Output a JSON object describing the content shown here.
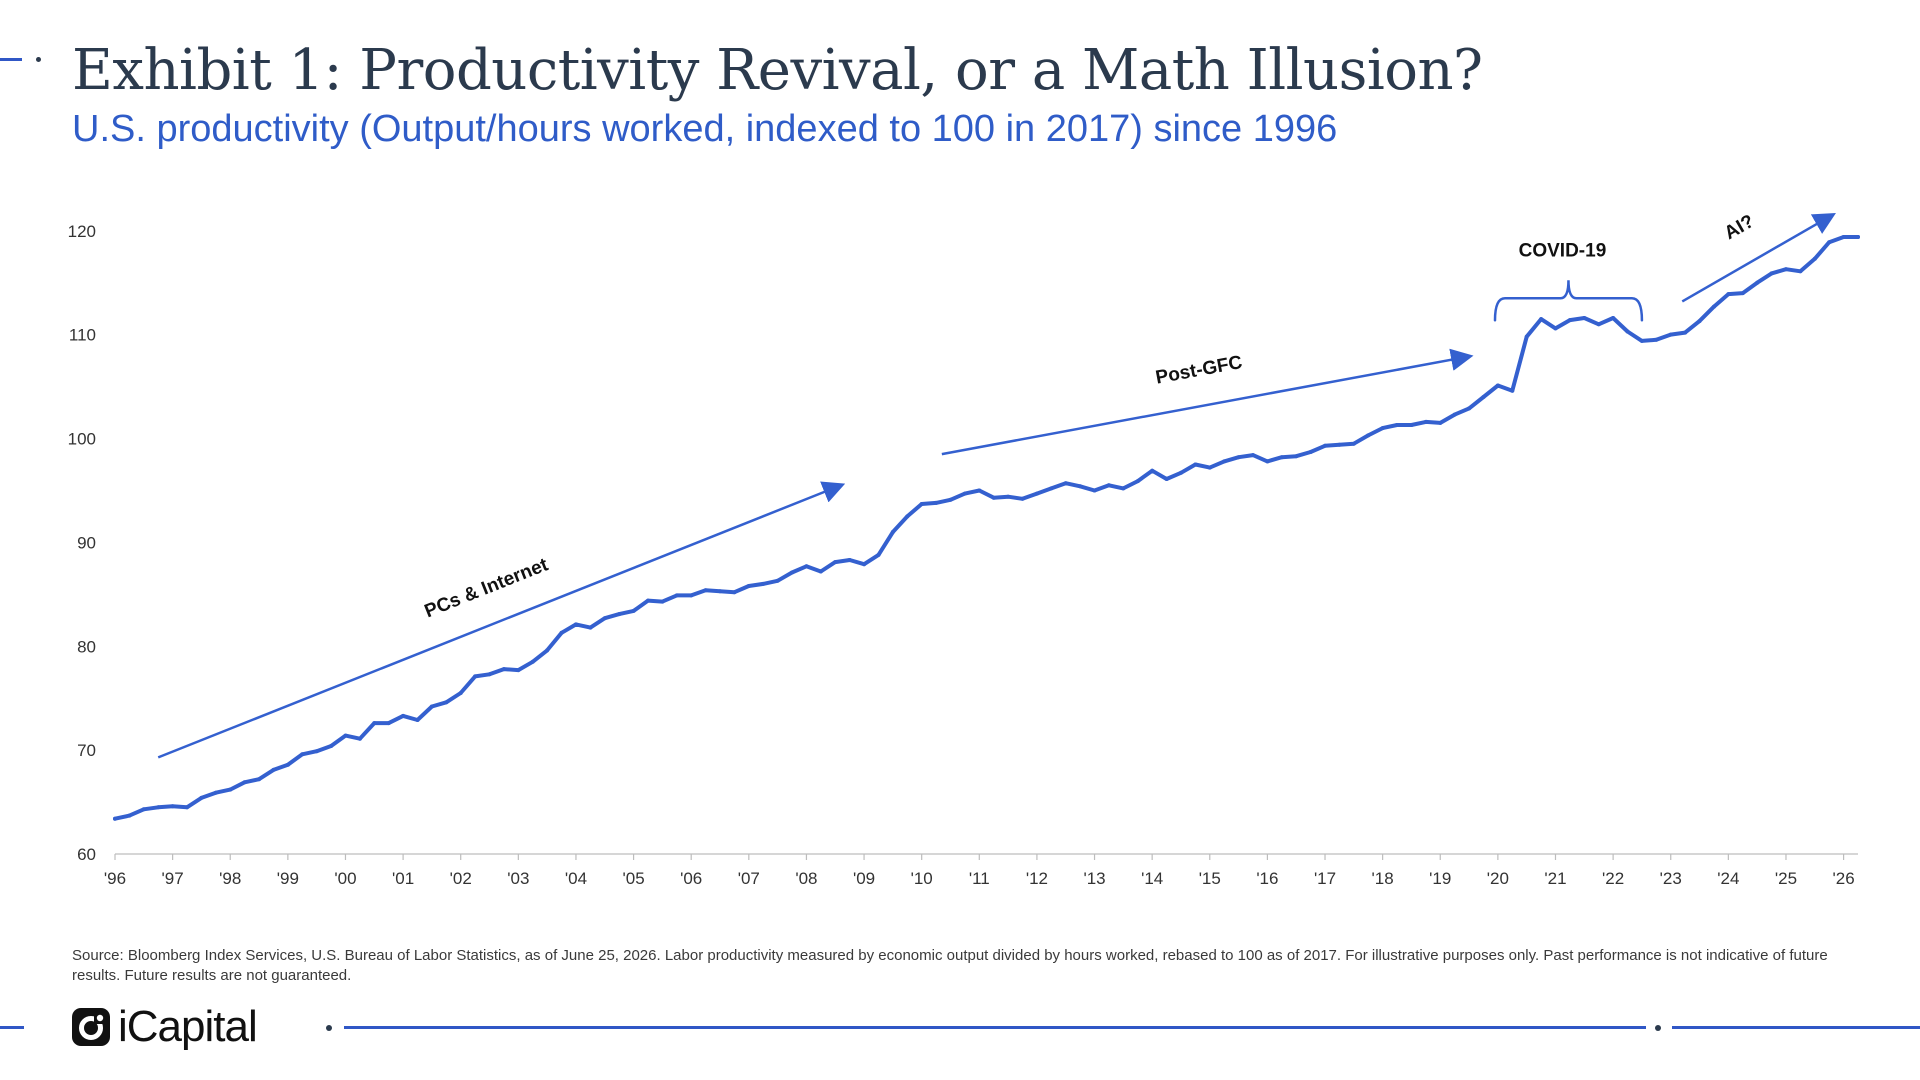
{
  "header": {
    "title": "Exhibit 1: Productivity Revival, or a Math Illusion?",
    "subtitle": "U.S. productivity (Output/hours worked, indexed to 100 in 2017) since 1996"
  },
  "colors": {
    "accent": "#3057c6",
    "line": "#3460cf",
    "title": "#2b3a4d",
    "subtitle": "#2f5cc8",
    "axis_text": "#333333"
  },
  "chart_data": {
    "type": "line",
    "title": "Exhibit 1: Productivity Revival, or a Math Illusion?",
    "subtitle": "U.S. productivity (Output/hours worked, indexed to 100 in 2017) since 1996",
    "xlabel": "",
    "ylabel": "",
    "ylim": [
      60,
      122
    ],
    "xlim": [
      1996.0,
      2026.25
    ],
    "yticks": [
      60,
      70,
      80,
      90,
      100,
      110,
      120
    ],
    "xticks": [
      {
        "x": 1996,
        "label": "'96"
      },
      {
        "x": 1997,
        "label": "'97"
      },
      {
        "x": 1998,
        "label": "'98"
      },
      {
        "x": 1999,
        "label": "'99"
      },
      {
        "x": 2000,
        "label": "'00"
      },
      {
        "x": 2001,
        "label": "'01"
      },
      {
        "x": 2002,
        "label": "'02"
      },
      {
        "x": 2003,
        "label": "'03"
      },
      {
        "x": 2004,
        "label": "'04"
      },
      {
        "x": 2005,
        "label": "'05"
      },
      {
        "x": 2006,
        "label": "'06"
      },
      {
        "x": 2007,
        "label": "'07"
      },
      {
        "x": 2008,
        "label": "'08"
      },
      {
        "x": 2009,
        "label": "'09"
      },
      {
        "x": 2010,
        "label": "'10"
      },
      {
        "x": 2011,
        "label": "'11"
      },
      {
        "x": 2012,
        "label": "'12"
      },
      {
        "x": 2013,
        "label": "'13"
      },
      {
        "x": 2014,
        "label": "'14"
      },
      {
        "x": 2015,
        "label": "'15"
      },
      {
        "x": 2016,
        "label": "'16"
      },
      {
        "x": 2017,
        "label": "'17"
      },
      {
        "x": 2018,
        "label": "'18"
      },
      {
        "x": 2019,
        "label": "'19"
      },
      {
        "x": 2020,
        "label": "'20"
      },
      {
        "x": 2021,
        "label": "'21"
      },
      {
        "x": 2022,
        "label": "'22"
      },
      {
        "x": 2023,
        "label": "'23"
      },
      {
        "x": 2024,
        "label": "'24"
      },
      {
        "x": 2025,
        "label": "'25"
      },
      {
        "x": 2026,
        "label": "'26"
      }
    ],
    "grid": false,
    "legend": "none",
    "series": [
      {
        "x": [
          1996.0,
          1996.25,
          1996.5,
          1996.75,
          1997.0,
          1997.25,
          1997.5,
          1997.75,
          1998.0,
          1998.25,
          1998.5,
          1998.75,
          1999.0,
          1999.25,
          1999.5,
          1999.75,
          2000.0,
          2000.25,
          2000.5,
          2000.75,
          2001.0,
          2001.25,
          2001.5,
          2001.75,
          2002.0,
          2002.25,
          2002.5,
          2002.75,
          2003.0,
          2003.25,
          2003.5,
          2003.75,
          2004.0,
          2004.25,
          2004.5,
          2004.75,
          2005.0,
          2005.25,
          2005.5,
          2005.75,
          2006.0,
          2006.25,
          2006.5,
          2006.75,
          2007.0,
          2007.25,
          2007.5,
          2007.75,
          2008.0,
          2008.25,
          2008.5,
          2008.75,
          2009.0,
          2009.25,
          2009.5,
          2009.75,
          2010.0,
          2010.25,
          2010.5,
          2010.75,
          2011.0,
          2011.25,
          2011.5,
          2011.75,
          2012.0,
          2012.25,
          2012.5,
          2012.75,
          2013.0,
          2013.25,
          2013.5,
          2013.75,
          2014.0,
          2014.25,
          2014.5,
          2014.75,
          2015.0,
          2015.25,
          2015.5,
          2015.75,
          2016.0,
          2016.25,
          2016.5,
          2016.75,
          2017.0,
          2017.25,
          2017.5,
          2017.75,
          2018.0,
          2018.25,
          2018.5,
          2018.75,
          2019.0,
          2019.25,
          2019.5,
          2019.75,
          2020.0,
          2020.25,
          2020.5,
          2020.75,
          2021.0,
          2021.25,
          2021.5,
          2021.75,
          2022.0,
          2022.25,
          2022.5,
          2022.75,
          2023.0,
          2023.25,
          2023.5,
          2023.75,
          2024.0,
          2024.25,
          2024.5,
          2024.75,
          2025.0,
          2025.25,
          2025.5,
          2025.75,
          2026.0,
          2026.25
        ],
        "values": [
          63.4,
          63.7,
          64.3,
          64.5,
          64.6,
          64.5,
          65.4,
          65.9,
          66.2,
          66.9,
          67.2,
          68.1,
          68.6,
          69.6,
          69.9,
          70.4,
          71.4,
          71.1,
          72.6,
          72.6,
          73.3,
          72.9,
          74.2,
          74.6,
          75.5,
          77.1,
          77.3,
          77.8,
          77.7,
          78.5,
          79.6,
          81.3,
          82.1,
          81.8,
          82.7,
          83.1,
          83.4,
          84.4,
          84.3,
          84.9,
          84.9,
          85.4,
          85.3,
          85.2,
          85.8,
          86.0,
          86.3,
          87.1,
          87.7,
          87.2,
          88.1,
          88.3,
          87.9,
          88.8,
          91.0,
          92.5,
          93.7,
          93.8,
          94.1,
          94.7,
          95.0,
          94.3,
          94.4,
          94.2,
          94.7,
          95.2,
          95.7,
          95.4,
          95.0,
          95.5,
          95.2,
          95.9,
          96.9,
          96.1,
          96.7,
          97.5,
          97.2,
          97.8,
          98.2,
          98.4,
          97.8,
          98.2,
          98.3,
          98.7,
          99.3,
          99.4,
          99.5,
          100.3,
          101.0,
          101.3,
          101.3,
          101.6,
          101.5,
          102.3,
          102.9,
          104.0,
          105.1,
          104.6,
          109.8,
          111.5,
          110.6,
          111.4,
          111.6,
          111.0,
          111.6,
          110.3,
          109.4,
          109.5,
          110.0,
          110.2,
          111.3,
          112.7,
          113.9,
          114.0,
          115.0,
          115.9,
          116.3,
          116.1,
          117.3,
          118.9,
          119.4,
          119.4
        ]
      }
    ],
    "annotations": [
      {
        "text": "PCs & Internet",
        "arrow_from": [
          1996.75,
          69.3
        ],
        "arrow_to": [
          2008.6,
          95.5
        ]
      },
      {
        "text": "Post-GFC",
        "arrow_from": [
          2010.35,
          98.5
        ],
        "arrow_to": [
          2019.5,
          107.9
        ]
      },
      {
        "text": "COVID-19",
        "bracket_from": 2019.95,
        "bracket_to": 2022.5,
        "bracket_y": 113.5
      },
      {
        "text": "AI?",
        "arrow_from": [
          2023.2,
          113.2
        ],
        "arrow_to": [
          2025.8,
          121.5
        ]
      }
    ]
  },
  "footer": {
    "source": "Source: Bloomberg Index Services, U.S. Bureau of Labor Statistics, as of June 25, 2026. Labor productivity measured by economic output divided by hours worked, rebased to 100 as of 2017. For illustrative purposes only. Past performance is not indicative of future results. Future results are not guaranteed.",
    "logo_text": "iCapital",
    "logo_icon": "icapital-mark-icon"
  }
}
